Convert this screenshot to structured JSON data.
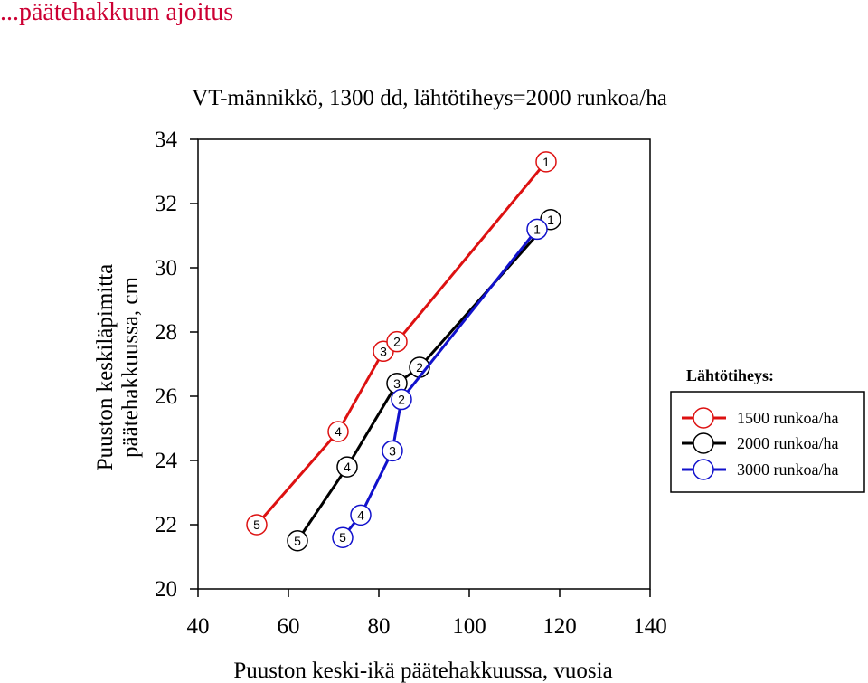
{
  "page": {
    "title": "...päätehakkuun ajoitus"
  },
  "chart_data": {
    "type": "line",
    "title": "VT-männikkö, 1300 dd, lähtötiheys=2000 runkoa/ha",
    "xlabel": "Puuston keski-ikä päätehakkuussa, vuosia",
    "ylabel_line1": "Puuston keskiläpimitta",
    "ylabel_line2": "päätehakkuussa, cm",
    "xlim": [
      40,
      140
    ],
    "ylim": [
      20,
      34
    ],
    "xticks": [
      40,
      60,
      80,
      100,
      120,
      140
    ],
    "yticks": [
      20,
      22,
      24,
      26,
      28,
      30,
      32,
      34
    ],
    "grid": false,
    "legend": {
      "title": "Lähtötiheys:",
      "placement": "right"
    },
    "series": [
      {
        "name": "1500 runkoa/ha",
        "color": "#dd1111",
        "points": [
          {
            "x": 53,
            "y": 22.0,
            "label": "5"
          },
          {
            "x": 71,
            "y": 24.9,
            "label": "4"
          },
          {
            "x": 81,
            "y": 27.4,
            "label": "3"
          },
          {
            "x": 84,
            "y": 27.7,
            "label": "2"
          },
          {
            "x": 117,
            "y": 33.3,
            "label": "1"
          }
        ]
      },
      {
        "name": "2000 runkoa/ha",
        "color": "#000000",
        "points": [
          {
            "x": 62,
            "y": 21.5,
            "label": "5"
          },
          {
            "x": 73,
            "y": 23.8,
            "label": "4"
          },
          {
            "x": 84,
            "y": 26.4,
            "label": "3"
          },
          {
            "x": 89,
            "y": 26.9,
            "label": "2"
          },
          {
            "x": 118,
            "y": 31.5,
            "label": "1"
          }
        ]
      },
      {
        "name": "3000 runkoa/ha",
        "color": "#1111cc",
        "points": [
          {
            "x": 72,
            "y": 21.6,
            "label": "5"
          },
          {
            "x": 76,
            "y": 22.3,
            "label": "4"
          },
          {
            "x": 83,
            "y": 24.3,
            "label": "3"
          },
          {
            "x": 85,
            "y": 25.9,
            "label": "2"
          },
          {
            "x": 115,
            "y": 31.2,
            "label": "1"
          }
        ]
      }
    ]
  }
}
